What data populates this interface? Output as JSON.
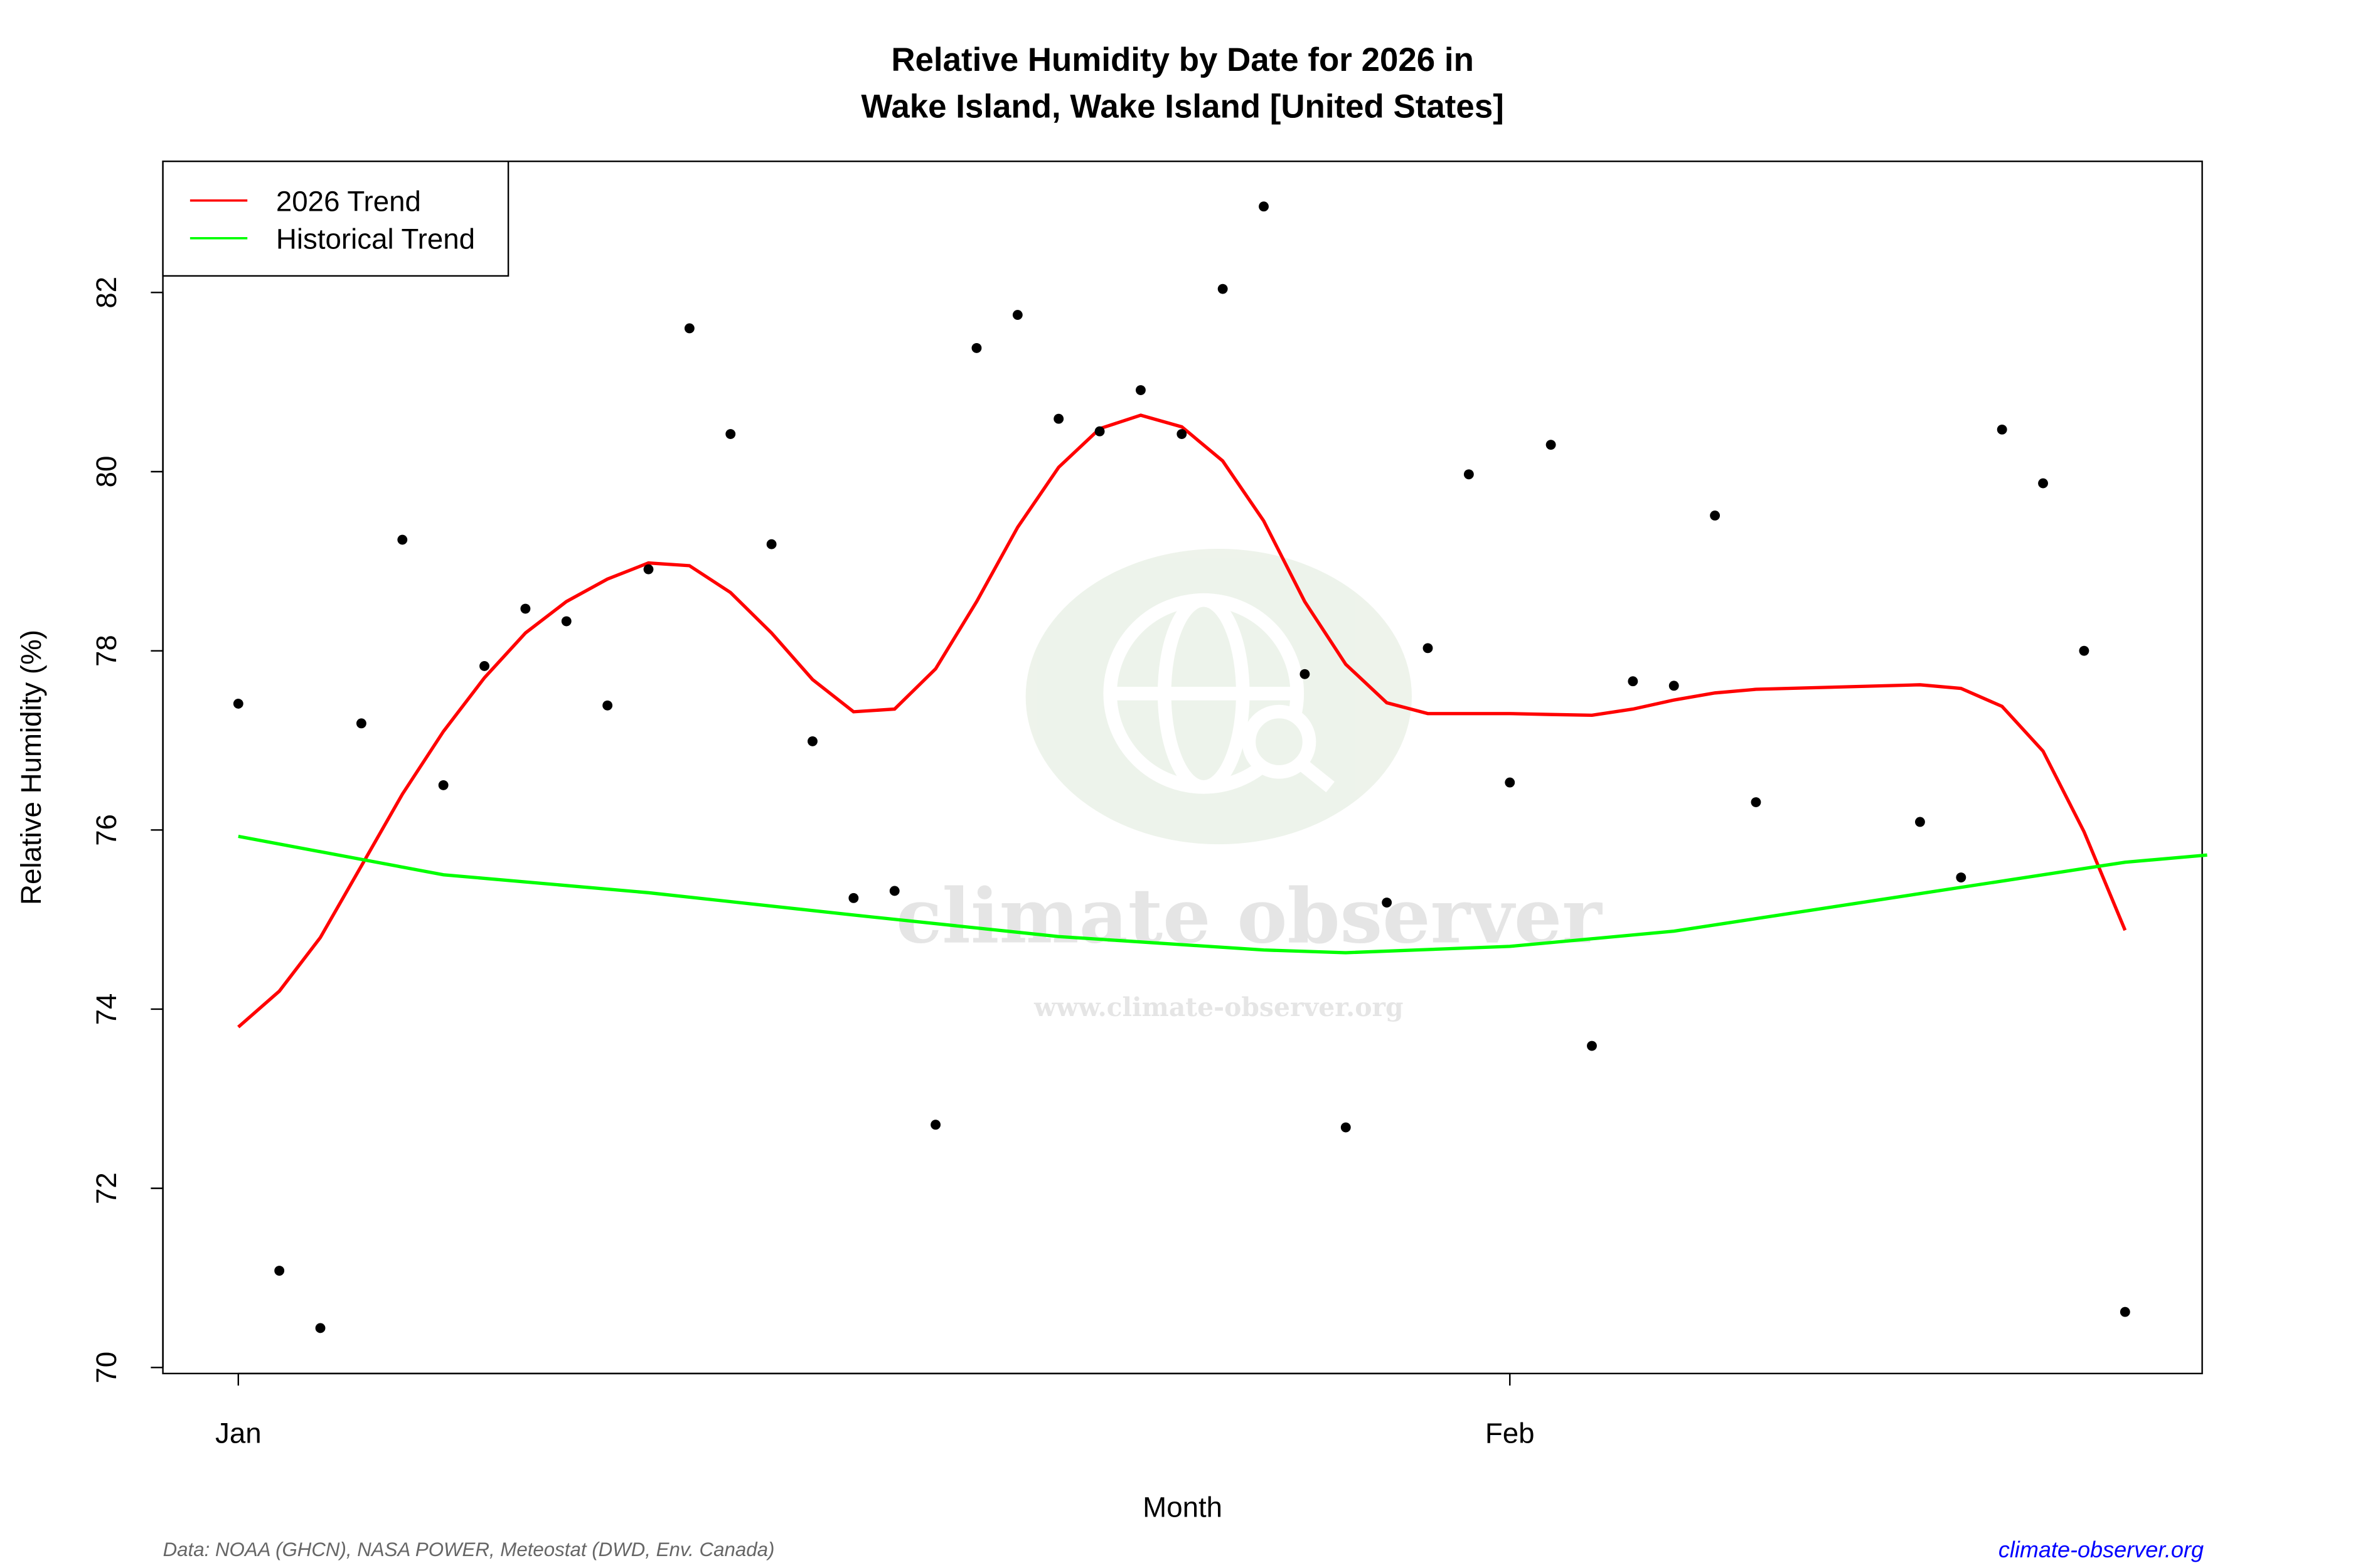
{
  "chart_data": {
    "type": "scatter",
    "title_line1": "Relative Humidity by Date for 2026 in",
    "title_line2": "Wake Island, Wake Island [United States]",
    "xlabel": "Month",
    "ylabel": "Relative Humidity (%)",
    "ylim": [
      69.9,
      83.5
    ],
    "xlim": [
      "2025-12-30",
      "2026-02-18"
    ],
    "yticks": [
      70,
      72,
      74,
      76,
      78,
      80,
      82
    ],
    "xticks": [
      {
        "date": "2026-01-01",
        "label": "Jan"
      },
      {
        "date": "2026-02-01",
        "label": "Feb"
      }
    ],
    "grid": false,
    "legend_position": "top-left",
    "points": {
      "x": [
        "2026-01-01",
        "2026-01-02",
        "2026-01-03",
        "2026-01-04",
        "2026-01-05",
        "2026-01-06",
        "2026-01-07",
        "2026-01-08",
        "2026-01-09",
        "2026-01-10",
        "2026-01-11",
        "2026-01-12",
        "2026-01-13",
        "2026-01-14",
        "2026-01-15",
        "2026-01-16",
        "2026-01-17",
        "2026-01-18",
        "2026-01-19",
        "2026-01-20",
        "2026-01-21",
        "2026-01-22",
        "2026-01-23",
        "2026-01-24",
        "2026-01-25",
        "2026-01-26",
        "2026-01-27",
        "2026-01-28",
        "2026-01-29",
        "2026-01-30",
        "2026-01-31",
        "2026-02-01",
        "2026-02-02",
        "2026-02-03",
        "2026-02-04",
        "2026-02-05",
        "2026-02-06",
        "2026-02-07",
        "2026-02-11",
        "2026-02-12",
        "2026-02-13",
        "2026-02-14",
        "2026-02-15",
        "2026-02-16"
      ],
      "y": [
        77.41,
        71.08,
        70.44,
        77.19,
        79.24,
        76.5,
        77.83,
        78.47,
        78.33,
        77.39,
        78.91,
        81.6,
        80.42,
        79.19,
        76.99,
        75.24,
        75.32,
        72.71,
        81.38,
        81.75,
        80.59,
        80.45,
        80.91,
        80.42,
        82.04,
        82.96,
        77.74,
        72.68,
        75.19,
        78.03,
        79.97,
        76.53,
        80.3,
        73.59,
        77.66,
        77.61,
        79.51,
        76.31,
        76.09,
        75.47,
        80.47,
        79.87,
        78.0,
        70.62
      ],
      "color": "#000000"
    },
    "series": [
      {
        "name": "2026 Trend",
        "color": "#ff0000",
        "x": [
          "2026-01-01",
          "2026-01-02",
          "2026-01-03",
          "2026-01-04",
          "2026-01-05",
          "2026-01-06",
          "2026-01-07",
          "2026-01-08",
          "2026-01-09",
          "2026-01-10",
          "2026-01-11",
          "2026-01-12",
          "2026-01-13",
          "2026-01-14",
          "2026-01-15",
          "2026-01-16",
          "2026-01-17",
          "2026-01-18",
          "2026-01-19",
          "2026-01-20",
          "2026-01-21",
          "2026-01-22",
          "2026-01-23",
          "2026-01-24",
          "2026-01-25",
          "2026-01-26",
          "2026-01-27",
          "2026-01-28",
          "2026-01-29",
          "2026-01-30",
          "2026-01-31",
          "2026-02-01",
          "2026-02-02",
          "2026-02-03",
          "2026-02-04",
          "2026-02-05",
          "2026-02-06",
          "2026-02-07",
          "2026-02-11",
          "2026-02-12",
          "2026-02-13",
          "2026-02-14",
          "2026-02-15",
          "2026-02-16"
        ],
        "y": [
          73.8,
          74.2,
          74.8,
          75.6,
          76.4,
          77.1,
          77.7,
          78.2,
          78.55,
          78.8,
          78.98,
          78.95,
          78.65,
          78.2,
          77.68,
          77.32,
          77.35,
          77.8,
          78.55,
          79.38,
          80.05,
          80.48,
          80.63,
          80.5,
          80.12,
          79.45,
          78.55,
          77.85,
          77.42,
          77.3,
          77.3,
          77.3,
          77.29,
          77.28,
          77.35,
          77.45,
          77.53,
          77.57,
          77.62,
          77.58,
          77.38,
          76.88,
          75.98,
          74.88
        ]
      },
      {
        "name": "Historical Trend",
        "color": "#00ff00",
        "x": [
          "2026-01-01",
          "2026-01-06",
          "2026-01-11",
          "2026-01-16",
          "2026-01-21",
          "2026-01-26",
          "2026-01-28",
          "2026-02-01",
          "2026-02-05",
          "2026-02-11",
          "2026-02-16",
          "2026-02-18"
        ],
        "y": [
          75.93,
          75.5,
          75.3,
          75.05,
          74.81,
          74.66,
          74.63,
          74.7,
          74.87,
          75.29,
          75.64,
          75.72
        ]
      }
    ]
  },
  "watermark": {
    "name": "climate observer",
    "url": "www.climate-observer.org"
  },
  "footer": {
    "source": "Data: NOAA (GHCN), NASA POWER, Meteostat (DWD, Env. Canada)",
    "site": "climate-observer.org",
    "site_color": "#0000ff"
  }
}
